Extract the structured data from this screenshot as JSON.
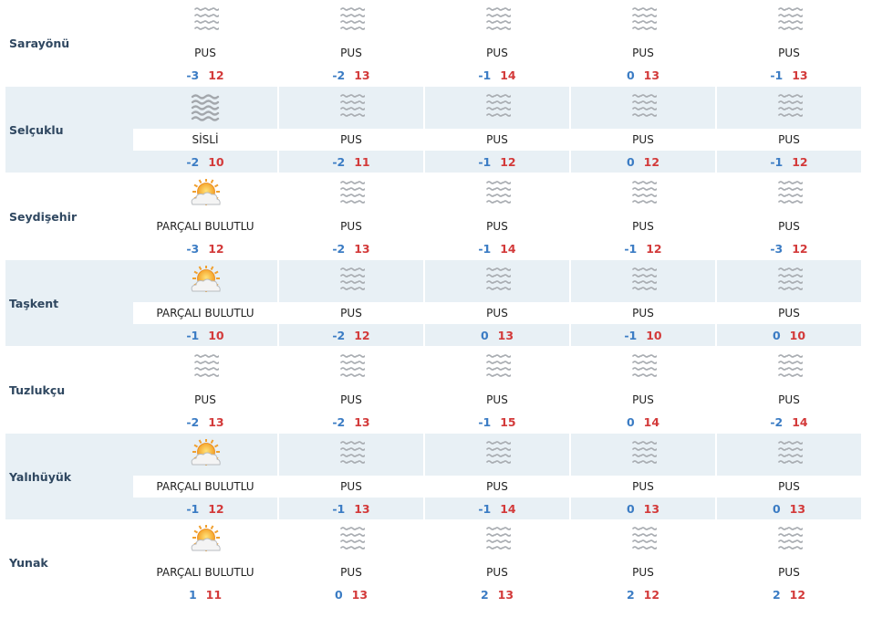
{
  "colors": {
    "min_temp": "#3b7cc4",
    "max_temp": "#d33a3a",
    "row_shade": "#e8f0f5",
    "name": "#2f4760"
  },
  "rows": [
    {
      "name": "Sarayönü",
      "days": [
        {
          "icon": "fog-icon",
          "cond": "PUS",
          "min": "-3",
          "max": "12"
        },
        {
          "icon": "fog-icon",
          "cond": "PUS",
          "min": "-2",
          "max": "13"
        },
        {
          "icon": "fog-icon",
          "cond": "PUS",
          "min": "-1",
          "max": "14"
        },
        {
          "icon": "fog-icon",
          "cond": "PUS",
          "min": "0",
          "max": "13"
        },
        {
          "icon": "fog-icon",
          "cond": "PUS",
          "min": "-1",
          "max": "13"
        }
      ]
    },
    {
      "name": "Selçuklu",
      "days": [
        {
          "icon": "dense-fog-icon",
          "cond": "SİSLİ",
          "min": "-2",
          "max": "10"
        },
        {
          "icon": "fog-icon",
          "cond": "PUS",
          "min": "-2",
          "max": "11"
        },
        {
          "icon": "fog-icon",
          "cond": "PUS",
          "min": "-1",
          "max": "12"
        },
        {
          "icon": "fog-icon",
          "cond": "PUS",
          "min": "0",
          "max": "12"
        },
        {
          "icon": "fog-icon",
          "cond": "PUS",
          "min": "-1",
          "max": "12"
        }
      ]
    },
    {
      "name": "Seydişehir",
      "days": [
        {
          "icon": "partly-cloudy-icon",
          "cond": "PARÇALI BULUTLU",
          "min": "-3",
          "max": "12"
        },
        {
          "icon": "fog-icon",
          "cond": "PUS",
          "min": "-2",
          "max": "13"
        },
        {
          "icon": "fog-icon",
          "cond": "PUS",
          "min": "-1",
          "max": "14"
        },
        {
          "icon": "fog-icon",
          "cond": "PUS",
          "min": "-1",
          "max": "12"
        },
        {
          "icon": "fog-icon",
          "cond": "PUS",
          "min": "-3",
          "max": "12"
        }
      ]
    },
    {
      "name": "Taşkent",
      "days": [
        {
          "icon": "partly-cloudy-icon",
          "cond": "PARÇALI BULUTLU",
          "min": "-1",
          "max": "10"
        },
        {
          "icon": "fog-icon",
          "cond": "PUS",
          "min": "-2",
          "max": "12"
        },
        {
          "icon": "fog-icon",
          "cond": "PUS",
          "min": "0",
          "max": "13"
        },
        {
          "icon": "fog-icon",
          "cond": "PUS",
          "min": "-1",
          "max": "10"
        },
        {
          "icon": "fog-icon",
          "cond": "PUS",
          "min": "0",
          "max": "10"
        }
      ]
    },
    {
      "name": "Tuzlukçu",
      "days": [
        {
          "icon": "fog-icon",
          "cond": "PUS",
          "min": "-2",
          "max": "13"
        },
        {
          "icon": "fog-icon",
          "cond": "PUS",
          "min": "-2",
          "max": "13"
        },
        {
          "icon": "fog-icon",
          "cond": "PUS",
          "min": "-1",
          "max": "15"
        },
        {
          "icon": "fog-icon",
          "cond": "PUS",
          "min": "0",
          "max": "14"
        },
        {
          "icon": "fog-icon",
          "cond": "PUS",
          "min": "-2",
          "max": "14"
        }
      ]
    },
    {
      "name": "Yalıhüyük",
      "days": [
        {
          "icon": "partly-cloudy-icon",
          "cond": "PARÇALI BULUTLU",
          "min": "-1",
          "max": "12"
        },
        {
          "icon": "fog-icon",
          "cond": "PUS",
          "min": "-1",
          "max": "13"
        },
        {
          "icon": "fog-icon",
          "cond": "PUS",
          "min": "-1",
          "max": "14"
        },
        {
          "icon": "fog-icon",
          "cond": "PUS",
          "min": "0",
          "max": "13"
        },
        {
          "icon": "fog-icon",
          "cond": "PUS",
          "min": "0",
          "max": "13"
        }
      ]
    },
    {
      "name": "Yunak",
      "days": [
        {
          "icon": "partly-cloudy-icon",
          "cond": "PARÇALI BULUTLU",
          "min": "1",
          "max": "11"
        },
        {
          "icon": "fog-icon",
          "cond": "PUS",
          "min": "0",
          "max": "13"
        },
        {
          "icon": "fog-icon",
          "cond": "PUS",
          "min": "2",
          "max": "13"
        },
        {
          "icon": "fog-icon",
          "cond": "PUS",
          "min": "2",
          "max": "12"
        },
        {
          "icon": "fog-icon",
          "cond": "PUS",
          "min": "2",
          "max": "12"
        }
      ]
    }
  ]
}
